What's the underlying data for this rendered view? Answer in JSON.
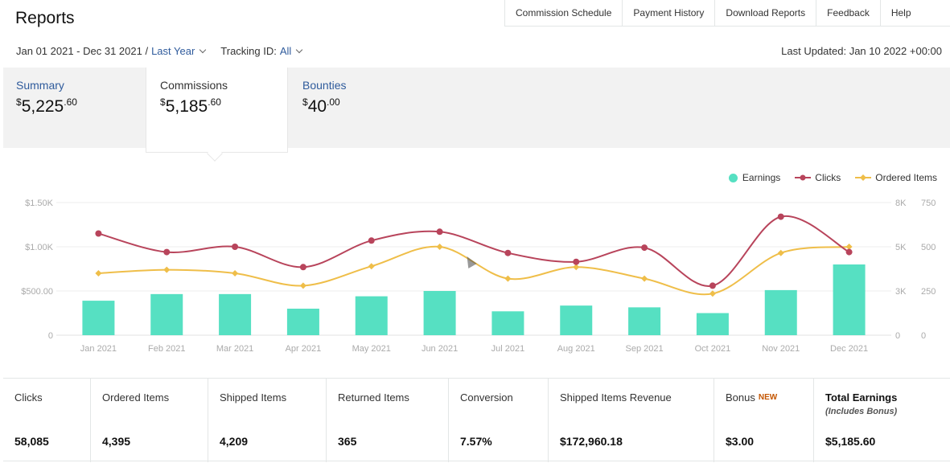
{
  "page": {
    "title": "Reports"
  },
  "top_nav": [
    "Commission Schedule",
    "Payment History",
    "Download Reports",
    "Feedback",
    "Help"
  ],
  "filters": {
    "date_range": "Jan 01 2021 - Dec 31 2021 /",
    "period": "Last Year",
    "tracking_label": "Tracking ID:",
    "tracking_value": "All"
  },
  "last_updated": "Last Updated: Jan 10 2022 +00:00",
  "tabs": {
    "summary": {
      "label": "Summary",
      "currency": "$",
      "whole": "5,225",
      "cents": ".60"
    },
    "commissions": {
      "label": "Commissions",
      "currency": "$",
      "whole": "5,185",
      "cents": ".60"
    },
    "bounties": {
      "label": "Bounties",
      "currency": "$",
      "whole": "40",
      "cents": ".00"
    }
  },
  "legend": [
    "Earnings",
    "Clicks",
    "Ordered Items"
  ],
  "colors": {
    "earnings": "#56e0c2",
    "clicks": "#b8445b",
    "ordered_items": "#efbe49",
    "link": "#2f5b9c",
    "new_badge": "#c45500"
  },
  "chart_data": {
    "type": "bar",
    "categories": [
      "Jan 2021",
      "Feb 2021",
      "Mar 2021",
      "Apr 2021",
      "May 2021",
      "Jun 2021",
      "Jul 2021",
      "Aug 2021",
      "Sep 2021",
      "Oct 2021",
      "Nov 2021",
      "Dec 2021"
    ],
    "series": [
      {
        "name": "Earnings",
        "type": "bar",
        "axis": "left",
        "values": [
          390,
          465,
          465,
          300,
          440,
          500,
          270,
          335,
          315,
          250,
          510,
          800
        ]
      },
      {
        "name": "Clicks",
        "type": "line",
        "axis": "right1",
        "values": [
          5750,
          4700,
          5000,
          3850,
          5350,
          5850,
          4650,
          4150,
          4950,
          2800,
          6700,
          4700
        ]
      },
      {
        "name": "Ordered Items",
        "type": "line",
        "axis": "right2",
        "values": [
          350,
          370,
          350,
          280,
          390,
          500,
          320,
          385,
          320,
          235,
          465,
          500
        ]
      }
    ],
    "axes": {
      "left": {
        "ticks": [
          "0",
          "$500.00",
          "$1.00K",
          "$1.50K"
        ],
        "range": [
          0,
          1500
        ]
      },
      "right1": {
        "ticks": [
          "0",
          "3K",
          "5K",
          "8K"
        ],
        "range": [
          0,
          7500
        ]
      },
      "right2": {
        "ticks": [
          "0",
          "250",
          "500",
          "750"
        ],
        "range": [
          0,
          750
        ]
      }
    },
    "grid": true,
    "legend_position": "top-right"
  },
  "stats": [
    {
      "label": "Clicks",
      "value": "58,085"
    },
    {
      "label": "Ordered Items",
      "value": "4,395"
    },
    {
      "label": "Shipped Items",
      "value": "4,209"
    },
    {
      "label": "Returned Items",
      "value": "365"
    },
    {
      "label": "Conversion",
      "value": "7.57%"
    },
    {
      "label": "Shipped Items Revenue",
      "value": "$172,960.18"
    },
    {
      "label": "Bonus",
      "badge": "NEW",
      "value": "$3.00"
    },
    {
      "label": "Total Earnings",
      "sub": "(Includes Bonus)",
      "value": "$5,185.60"
    }
  ]
}
